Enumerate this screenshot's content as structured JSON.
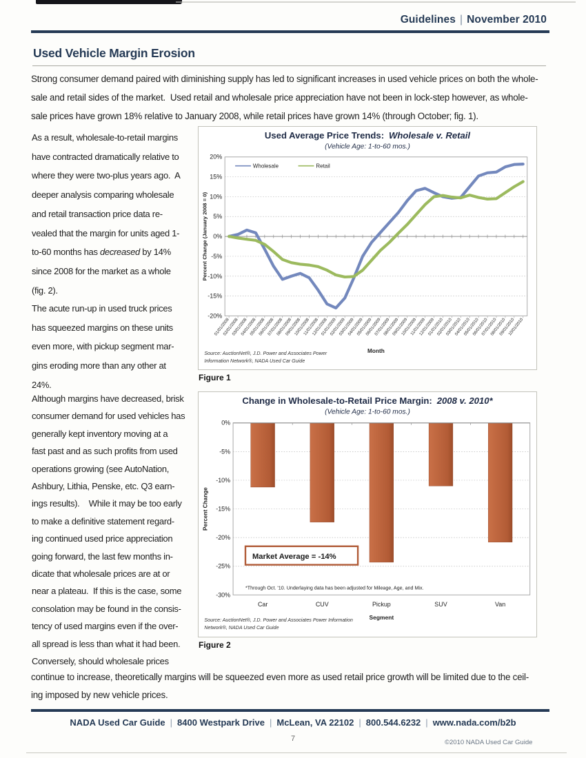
{
  "colors": {
    "accent_navy": "#253a55",
    "body_text": "#1d1d1d",
    "wholesale_blue": "#7388bd",
    "retail_green": "#9cba5e",
    "bar_orange": "#b35c36"
  },
  "header": {
    "publication": "Guidelines",
    "separator": "|",
    "issue": "November 2010"
  },
  "article": {
    "title": "Used Vehicle Margin Erosion",
    "intro_lines": [
      "Strong consumer demand paired with diminishing supply has led to significant increases in used vehicle prices on both the whole-",
      "sale and retail sides of the market.  Used retail and wholesale price appreciation have not been in lock-step however, as whole-",
      "sale prices have grown 18% relative to January 2008, while retail prices have grown 14% (through October; fig. 1)."
    ],
    "left_column": {
      "paragraphs": [
        {
          "lines": [
            "As a result, wholesale-to-retail margins",
            "have contracted dramatically relative to",
            "where they were two-plus years ago.  A",
            "deeper analysis comparing wholesale",
            "and retail transaction price data re-",
            "vealed that the margin for units aged 1-",
            [
              {
                "t": "to-60 months has "
              },
              {
                "t": "decreased",
                "i": true
              },
              {
                "t": " by 14%"
              }
            ],
            "since 2008 for the market as a whole",
            "(fig. 2)."
          ]
        },
        {
          "lines": [
            "The acute run-up in used truck prices",
            "has squeezed margins on these units",
            "even more, with pickup segment mar-",
            "gins eroding more than any other at",
            "24%."
          ]
        },
        {
          "lines": [
            "Although margins have decreased, brisk",
            "consumer demand for used vehicles has",
            "generally kept inventory moving at a",
            "fast past and as such profits from used",
            "operations growing (see AutoNation,",
            "Ashbury, Lithia, Penske, etc. Q3 earn-",
            "ings results).    While it may be too early",
            "to make a definitive statement regard-",
            "ing continued used price appreciation",
            "going forward, the last few months in-",
            "dicate that wholesale prices are at or",
            "near a plateau.  If this is the case, some",
            "consolation may be found in the consis-",
            "tency of used margins even if the over-",
            "all spread is less than what it had been.",
            "Conversely, should wholesale prices"
          ]
        }
      ]
    },
    "closing_lines": [
      "continue to increase, theoretically margins will be squeezed even more as used retail price growth will be limited due to the ceil-",
      "ing imposed by new vehicle prices."
    ]
  },
  "chart_data": [
    {
      "type": "line",
      "title": "Used Average Price Trends:",
      "title_italic": "Wholesale v. Retail",
      "subtitle": "(Vehicle Age: 1-to-60 mos.)",
      "xlabel": "Month",
      "ylabel": "Percent Change (January 2008 = 0)",
      "ylim": [
        -20,
        20
      ],
      "ytick_step": 5,
      "grid": true,
      "legend_position": "top-left-inside",
      "x": [
        "01/01/2008",
        "02/01/2008",
        "03/01/2008",
        "04/01/2008",
        "05/01/2008",
        "06/01/2008",
        "07/01/2008",
        "08/01/2008",
        "09/01/2008",
        "10/01/2008",
        "11/01/2008",
        "12/01/2008",
        "01/01/2009",
        "02/01/2009",
        "03/01/2009",
        "04/01/2009",
        "05/01/2009",
        "06/01/2009",
        "07/01/2009",
        "08/01/2009",
        "09/01/2009",
        "10/01/2009",
        "11/01/2009",
        "12/01/2009",
        "01/01/2010",
        "02/01/2010",
        "03/01/2010",
        "04/01/2010",
        "05/01/2010",
        "06/01/2010",
        "07/01/2010",
        "08/01/2010",
        "09/01/2010",
        "10/01/2010"
      ],
      "series": [
        {
          "name": "Wholesale",
          "color": "#7388bd",
          "values": [
            0,
            0.5,
            1.6,
            0.9,
            -3.2,
            -7.5,
            -10.8,
            -10.0,
            -9.3,
            -10.4,
            -13.5,
            -17.0,
            -18.0,
            -15.5,
            -10.5,
            -5.0,
            -1.5,
            1.0,
            3.5,
            6.0,
            9.0,
            11.5,
            12.1,
            11.0,
            10.0,
            9.6,
            9.8,
            12.5,
            15.2,
            16.0,
            16.2,
            17.5,
            18.1,
            18.2
          ]
        },
        {
          "name": "Retail",
          "color": "#9cba5e",
          "values": [
            0,
            -0.4,
            -0.7,
            -1.0,
            -2.0,
            -3.8,
            -5.8,
            -6.6,
            -7.0,
            -7.2,
            -7.6,
            -8.5,
            -9.7,
            -10.2,
            -10.1,
            -8.5,
            -6.0,
            -3.5,
            -1.5,
            0.8,
            3.0,
            5.5,
            8.0,
            10.0,
            10.3,
            9.9,
            9.7,
            10.4,
            9.8,
            9.4,
            9.5,
            11.0,
            12.5,
            13.8
          ]
        }
      ],
      "source_lines": [
        "Source:  AuctionNet®, J.D. Power and Associates Power",
        "Information Network®, NADA Used Car Guide"
      ],
      "caption": "Figure 1"
    },
    {
      "type": "bar",
      "title": "Change in Wholesale-to-Retail Price Margin:",
      "title_italic": "2008 v. 2010*",
      "subtitle": "(Vehicle Age: 1-to-60 mos.)",
      "xlabel": "Segment",
      "ylabel": "Percent Change",
      "ylim": [
        -30,
        0
      ],
      "ytick_step": 5,
      "grid": true,
      "categories": [
        "Car",
        "CUV",
        "Pickup",
        "SUV",
        "Van"
      ],
      "values": [
        -11.2,
        -17.3,
        -24.3,
        -11.0,
        -20.8
      ],
      "annotation": "Market Average  = -14%",
      "footnote": "*Through Oct. '10.  Underlaying data has been adjusted for Mileage, Age, and Mix.",
      "bar_color_light": "#c97047",
      "bar_color_mid": "#b35c36",
      "bar_color_dark": "#9d4d2a",
      "source_lines": [
        "Source:  AuctionNet®, J.D. Power and Associates Power Information",
        "Network®, NADA Used Car Guide"
      ],
      "caption": "Figure 2"
    }
  ],
  "footer": {
    "items": [
      "NADA Used Car Guide",
      "8400 Westpark Drive",
      "McLean, VA  22102",
      "800.544.6232",
      "www.nada.com/b2b"
    ],
    "page_number": "7",
    "copyright": "©2010 NADA Used Car Guide"
  }
}
